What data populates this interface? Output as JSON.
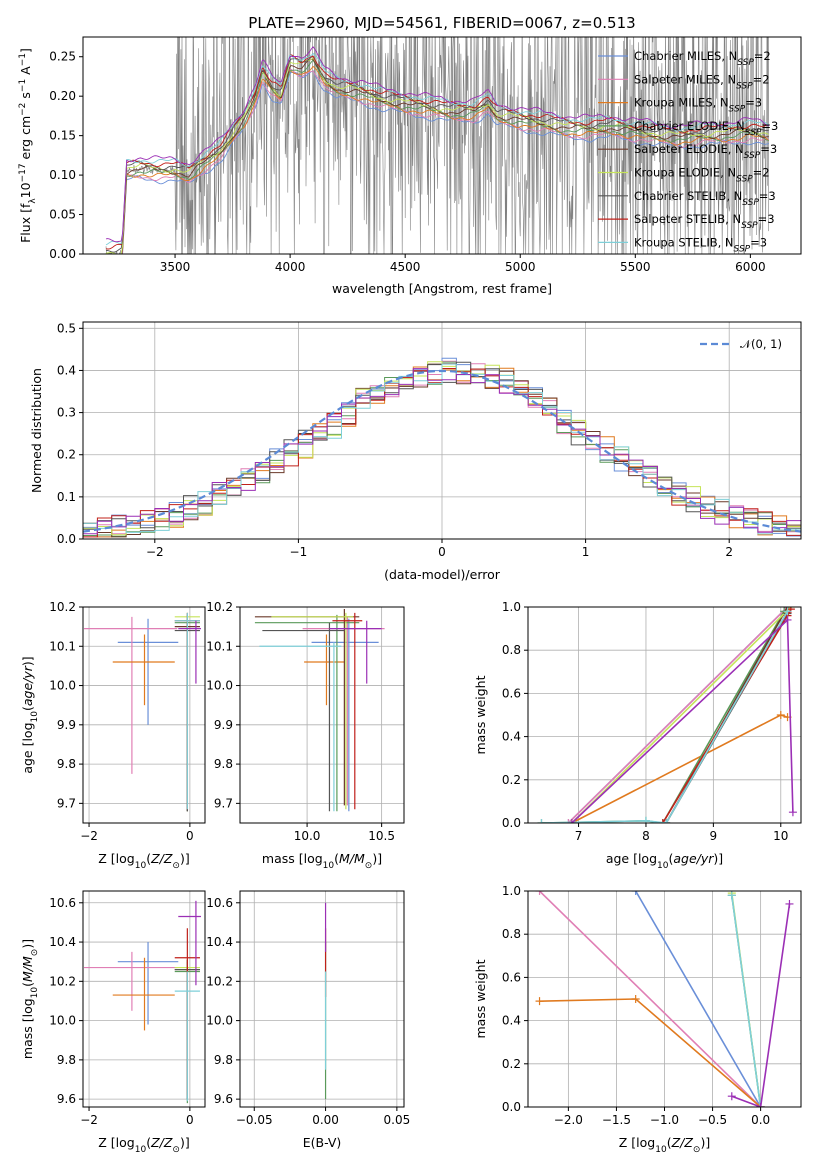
{
  "series_legend": [
    {
      "label": "Chabrier MILES, N_SSP=2",
      "color": "#6a8fd8"
    },
    {
      "label": "Salpeter MILES, N_SSP=2",
      "color": "#e07fb5"
    },
    {
      "label": "Kroupa MILES, N_SSP=3",
      "color": "#e07a1f"
    },
    {
      "label": "Chabrier ELODIE, N_SSP=3",
      "color": "#5a9a5a"
    },
    {
      "label": "Salpeter ELODIE, N_SSP=3",
      "color": "#6b3a2a"
    },
    {
      "label": "Kroupa ELODIE, N_SSP=2",
      "color": "#c6e45a"
    },
    {
      "label": "Chabrier STELIB, N_SSP=3",
      "color": "#555555"
    },
    {
      "label": "Salpeter STELIB, N_SSP=3",
      "color": "#c0201a"
    },
    {
      "label": "Kroupa STELIB, N_SSP=3",
      "color": "#7ecfd8"
    }
  ],
  "chart_data": [
    {
      "id": "spectrum",
      "type": "line",
      "title": "PLATE=2960, MJD=54561, FIBERID=0067, z=0.513",
      "xlabel": "wavelength [Angstrom, rest frame]",
      "ylabel": "Flux [f_λ 10^−17 erg cm^−2 s^−1 A^−1]",
      "xlim": [
        3100,
        6220
      ],
      "ylim": [
        0,
        0.275
      ],
      "xticks": [
        3500,
        4000,
        4500,
        5000,
        5500,
        6000
      ],
      "yticks": [
        0.0,
        0.05,
        0.1,
        0.15,
        0.2,
        0.25
      ],
      "model_x": [
        3200,
        3270,
        3290,
        3350,
        3450,
        3500,
        3560,
        3600,
        3650,
        3700,
        3750,
        3800,
        3850,
        3880,
        3920,
        3960,
        4000,
        4050,
        4100,
        4150,
        4200,
        4300,
        4400,
        4500,
        4600,
        4700,
        4800,
        4860,
        4900,
        5000,
        5100,
        5200,
        5300,
        5400,
        5500,
        5600,
        5700,
        5800,
        5900,
        6000,
        6080
      ],
      "model_y": [
        0.0,
        0.0,
        0.105,
        0.108,
        0.105,
        0.105,
        0.1,
        0.11,
        0.12,
        0.13,
        0.15,
        0.17,
        0.2,
        0.23,
        0.21,
        0.2,
        0.24,
        0.235,
        0.245,
        0.22,
        0.21,
        0.205,
        0.195,
        0.19,
        0.185,
        0.18,
        0.18,
        0.19,
        0.175,
        0.17,
        0.165,
        0.16,
        0.158,
        0.16,
        0.155,
        0.15,
        0.148,
        0.15,
        0.152,
        0.155,
        0.15
      ],
      "grid": false,
      "legend": "upper right"
    },
    {
      "id": "residuals",
      "type": "step-histogram",
      "xlabel": "(data-model)/error",
      "ylabel": "Normed distribution",
      "xlim": [
        -2.5,
        2.5
      ],
      "ylim": [
        0,
        0.515
      ],
      "xticks": [
        -2,
        -1,
        0,
        1,
        2
      ],
      "yticks": [
        0.0,
        0.1,
        0.2,
        0.3,
        0.4,
        0.5
      ],
      "reference": {
        "label": "𝒩(0, 1)",
        "mean": 0,
        "sigma": 1
      },
      "legend": "upper right",
      "grid": true
    },
    {
      "id": "age_vs_Z",
      "type": "errorbar",
      "xlabel": "Z [log10(Z/Z⊙)]",
      "ylabel": "age  [log10(age/yr)]",
      "xlim": [
        -2.12,
        0.3
      ],
      "ylim": [
        9.65,
        10.2
      ],
      "xticks": [
        -2,
        0
      ],
      "yticks": [
        9.7,
        9.8,
        9.9,
        10.0,
        10.1,
        10.2
      ],
      "points": [
        {
          "s": 0,
          "x": -0.83,
          "xerr": [
            0.6,
            0.6
          ],
          "y": 10.11,
          "yerr": [
            0.21,
            0.06
          ]
        },
        {
          "s": 1,
          "x": -1.15,
          "xerr": [
            0.95,
            0.9
          ],
          "y": 10.145,
          "yerr": [
            0.37,
            0.03
          ]
        },
        {
          "s": 2,
          "x": -0.9,
          "xerr": [
            0.63,
            0.6
          ],
          "y": 10.06,
          "yerr": [
            0.11,
            0.07
          ]
        },
        {
          "s": 3,
          "x": -0.05,
          "xerr": [
            0.25,
            0.25
          ],
          "y": 10.16,
          "yerr": [
            0.48,
            0.02
          ]
        },
        {
          "s": 4,
          "x": -0.05,
          "xerr": [
            0.25,
            0.25
          ],
          "y": 10.15,
          "yerr": [
            0.47,
            0.02
          ]
        },
        {
          "s": 5,
          "x": -0.05,
          "xerr": [
            0.25,
            0.25
          ],
          "y": 10.175,
          "yerr": [
            0.49,
            0.01
          ]
        },
        {
          "s": 6,
          "x": -0.05,
          "xerr": [
            0.25,
            0.25
          ],
          "y": 10.14,
          "yerr": [
            0.46,
            0.02
          ]
        },
        {
          "s": 7,
          "x": -0.05,
          "xerr": [
            0.25,
            0.25
          ],
          "y": 10.165,
          "yerr": [
            0.48,
            0.02
          ]
        },
        {
          "s": 8,
          "x": -0.05,
          "xerr": [
            0.25,
            0.25
          ],
          "y": 10.165,
          "yerr": [
            0.48,
            0.02
          ]
        },
        {
          "s": 9,
          "x": 0.12,
          "xerr": [
            0.35,
            0.1
          ],
          "y": 10.145,
          "yerr": [
            0.14,
            0.02
          ]
        }
      ]
    },
    {
      "id": "age_vs_mass",
      "type": "errorbar",
      "xlabel": "mass [log10(M/M⊙)]",
      "ylabel": "",
      "xlim": [
        9.55,
        10.65
      ],
      "ylim": [
        9.65,
        10.2
      ],
      "xticks": [
        10.0,
        10.5
      ],
      "yticks": [
        9.7,
        9.8,
        9.9,
        10.0,
        10.1,
        10.2
      ],
      "points": [
        {
          "s": 0,
          "x": 10.28,
          "xerr": [
            0.25,
            0.2
          ],
          "y": 10.11,
          "yerr": [
            0.43,
            0.06
          ]
        },
        {
          "s": 1,
          "x": 10.27,
          "xerr": [
            0.3,
            0.25
          ],
          "y": 10.145,
          "yerr": [
            0.45,
            0.03
          ]
        },
        {
          "s": 2,
          "x": 10.13,
          "xerr": [
            0.15,
            0.12
          ],
          "y": 10.06,
          "yerr": [
            0.11,
            0.07
          ]
        },
        {
          "s": 3,
          "x": 10.2,
          "xerr": [
            0.55,
            0.15
          ],
          "y": 10.16,
          "yerr": [
            0.48,
            0.02
          ]
        },
        {
          "s": 4,
          "x": 10.25,
          "xerr": [
            0.6,
            0.1
          ],
          "y": 10.175,
          "yerr": [
            0.48,
            0.02
          ]
        },
        {
          "s": 5,
          "x": 10.26,
          "xerr": [
            0.5,
            0.05
          ],
          "y": 10.175,
          "yerr": [
            0.49,
            0.01
          ]
        },
        {
          "s": 6,
          "x": 10.15,
          "xerr": [
            0.45,
            0.1
          ],
          "y": 10.14,
          "yerr": [
            0.46,
            0.02
          ]
        },
        {
          "s": 7,
          "x": 10.32,
          "xerr": [
            0.15,
            0.05
          ],
          "y": 10.165,
          "yerr": [
            0.48,
            0.02
          ]
        },
        {
          "s": 8,
          "x": 10.18,
          "xerr": [
            0.5,
            0.05
          ],
          "y": 10.1,
          "yerr": [
            0.42,
            0.01
          ]
        },
        {
          "s": 9,
          "x": 10.4,
          "xerr": [
            0.25,
            0.1
          ],
          "y": 10.145,
          "yerr": [
            0.14,
            0.02
          ]
        }
      ]
    },
    {
      "id": "weight_vs_age",
      "type": "line",
      "xlabel": "age  [log10(age/yr)]",
      "ylabel": "mass weight",
      "xlim": [
        6.25,
        10.3
      ],
      "ylim": [
        0,
        1
      ],
      "xticks": [
        7,
        8,
        9,
        10
      ],
      "yticks": [
        0.0,
        0.2,
        0.4,
        0.6,
        0.8,
        1.0
      ],
      "series": [
        {
          "s": 0,
          "x": [
            6.85,
            10.1
          ],
          "y": [
            0.0,
            1.0
          ]
        },
        {
          "s": 1,
          "x": [
            6.85,
            10.1
          ],
          "y": [
            0.0,
            1.0
          ]
        },
        {
          "s": 2,
          "x": [
            6.9,
            10.0,
            10.1
          ],
          "y": [
            0.0,
            0.5,
            0.49
          ]
        },
        {
          "s": 3,
          "x": [
            6.45,
            8.0,
            8.25,
            10.05
          ],
          "y": [
            0.0,
            0.01,
            0.0,
            0.98
          ]
        },
        {
          "s": 4,
          "x": [
            8.3,
            10.1
          ],
          "y": [
            0.0,
            1.0
          ]
        },
        {
          "s": 5,
          "x": [
            6.9,
            10.15
          ],
          "y": [
            0.0,
            1.0
          ]
        },
        {
          "s": 6,
          "x": [
            8.3,
            10.1
          ],
          "y": [
            0.0,
            0.97
          ]
        },
        {
          "s": 7,
          "x": [
            8.25,
            10.1,
            10.15
          ],
          "y": [
            0.0,
            0.96,
            0.99
          ]
        },
        {
          "s": 8,
          "x": [
            6.45,
            8.0,
            8.3,
            10.1
          ],
          "y": [
            0.0,
            0.01,
            0.0,
            0.98
          ]
        },
        {
          "s": 9,
          "x": [
            6.9,
            10.1,
            10.18
          ],
          "y": [
            0.0,
            0.94,
            0.05
          ]
        }
      ]
    },
    {
      "id": "mass_vs_Z",
      "type": "errorbar",
      "xlabel": "Z [log10(Z/Z⊙)]",
      "ylabel": "mass [log10(M/M⊙)]",
      "xlim": [
        -2.12,
        0.3
      ],
      "ylim": [
        9.56,
        10.66
      ],
      "xticks": [
        -2,
        0
      ],
      "yticks": [
        9.6,
        9.8,
        10.0,
        10.2,
        10.4,
        10.6
      ],
      "points": [
        {
          "s": 0,
          "x": -0.83,
          "xerr": [
            0.6,
            0.6
          ],
          "y": 10.3,
          "yerr": [
            0.32,
            0.1
          ]
        },
        {
          "s": 1,
          "x": -1.15,
          "xerr": [
            0.95,
            0.9
          ],
          "y": 10.27,
          "yerr": [
            0.22,
            0.08
          ]
        },
        {
          "s": 2,
          "x": -0.9,
          "xerr": [
            0.63,
            0.6
          ],
          "y": 10.13,
          "yerr": [
            0.18,
            0.19
          ]
        },
        {
          "s": 3,
          "x": -0.05,
          "xerr": [
            0.25,
            0.25
          ],
          "y": 10.25,
          "yerr": [
            0.67,
            0.05
          ]
        },
        {
          "s": 4,
          "x": -0.05,
          "xerr": [
            0.25,
            0.25
          ],
          "y": 10.26,
          "yerr": [
            0.66,
            0.05
          ]
        },
        {
          "s": 5,
          "x": -0.05,
          "xerr": [
            0.25,
            0.25
          ],
          "y": 10.27,
          "yerr": [
            0.65,
            0.04
          ]
        },
        {
          "s": 6,
          "x": -0.05,
          "xerr": [
            0.25,
            0.25
          ],
          "y": 10.26,
          "yerr": [
            0.66,
            0.05
          ]
        },
        {
          "s": 7,
          "x": -0.05,
          "xerr": [
            0.25,
            0.25
          ],
          "y": 10.32,
          "yerr": [
            0.7,
            0.15
          ]
        },
        {
          "s": 8,
          "x": -0.05,
          "xerr": [
            0.25,
            0.25
          ],
          "y": 10.15,
          "yerr": [
            0.56,
            0.1
          ]
        },
        {
          "s": 9,
          "x": 0.12,
          "xerr": [
            0.35,
            0.1
          ],
          "y": 10.53,
          "yerr": [
            0.35,
            0.08
          ]
        }
      ]
    },
    {
      "id": "mass_vs_ebv",
      "type": "errorbar",
      "xlabel": "E(B-V)",
      "ylabel": "",
      "xlim": [
        -0.06,
        0.055
      ],
      "ylim": [
        9.56,
        10.66
      ],
      "xticks": [
        -0.05,
        0.0,
        0.05
      ],
      "yticks": [
        9.6,
        9.8,
        10.0,
        10.2,
        10.4,
        10.6
      ],
      "points": [
        {
          "s": 3,
          "x": 0.0,
          "y": 10.1,
          "yerr": [
            0.5,
            0.3
          ]
        },
        {
          "s": 7,
          "x": 0.0,
          "y": 10.32,
          "yerr": [
            0.2,
            0.15
          ]
        },
        {
          "s": 9,
          "x": 0.0,
          "y": 10.5,
          "yerr": [
            0.15,
            0.1
          ]
        },
        {
          "s": 8,
          "x": 0.0,
          "y": 10.2,
          "yerr": [
            0.45,
            0.05
          ]
        }
      ]
    },
    {
      "id": "weight_vs_Z",
      "type": "line",
      "xlabel": "Z [log10(Z/Z⊙)]",
      "ylabel": "mass weight",
      "xlim": [
        -2.42,
        0.42
      ],
      "ylim": [
        0,
        1
      ],
      "xticks": [
        -2.0,
        -1.5,
        -1.0,
        -0.5,
        0.0
      ],
      "yticks": [
        0.0,
        0.2,
        0.4,
        0.6,
        0.8,
        1.0
      ],
      "series": [
        {
          "s": 0,
          "x": [
            -1.3,
            0.0
          ],
          "y": [
            1.0,
            0.0
          ]
        },
        {
          "s": 1,
          "x": [
            -2.3,
            0.0
          ],
          "y": [
            1.0,
            0.0
          ]
        },
        {
          "s": 2,
          "x": [
            -2.3,
            -1.3,
            0.0
          ],
          "y": [
            0.49,
            0.5,
            0.0
          ]
        },
        {
          "s": 3,
          "x": [
            -0.3,
            0.0
          ],
          "y": [
            0.98,
            0.0
          ]
        },
        {
          "s": 5,
          "x": [
            -0.3,
            0.0
          ],
          "y": [
            0.99,
            0.0
          ]
        },
        {
          "s": 8,
          "x": [
            -0.3,
            0.0
          ],
          "y": [
            0.98,
            0.0
          ]
        },
        {
          "s": 9,
          "x": [
            -0.3,
            0.0,
            0.3
          ],
          "y": [
            0.05,
            0.0,
            0.94
          ]
        }
      ]
    }
  ]
}
